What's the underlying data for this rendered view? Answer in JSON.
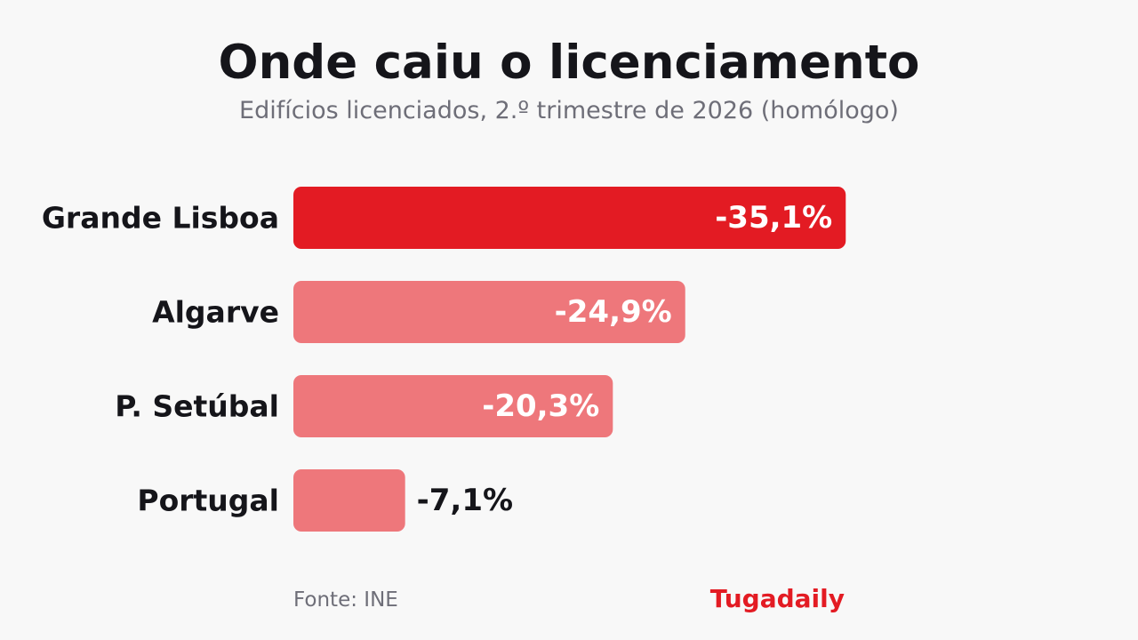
{
  "title": "Onde caiu o licenciamento",
  "subtitle": "Edifícios licenciados, 2.º trimestre de 2026 (homólogo)",
  "source": "Fonte: INE",
  "brand": "Tugadaily",
  "colors": {
    "highlight": "#e31b23",
    "bar": "#ee777b",
    "brand": "#e31b23",
    "label_inside": "#ffffff",
    "label_outside": "#15151a"
  },
  "chart_data": {
    "type": "bar",
    "orientation": "horizontal",
    "categories": [
      "Grande Lisboa",
      "Algarve",
      "P. Setúbal",
      "Portugal"
    ],
    "values": [
      -35.1,
      -24.9,
      -20.3,
      -7.1
    ],
    "value_labels": [
      "-35,1%",
      "-24,9%",
      "-20,3%",
      "-7,1%"
    ],
    "highlighted": "Grande Lisboa",
    "unit": "%",
    "grid": false,
    "legend": "none"
  }
}
